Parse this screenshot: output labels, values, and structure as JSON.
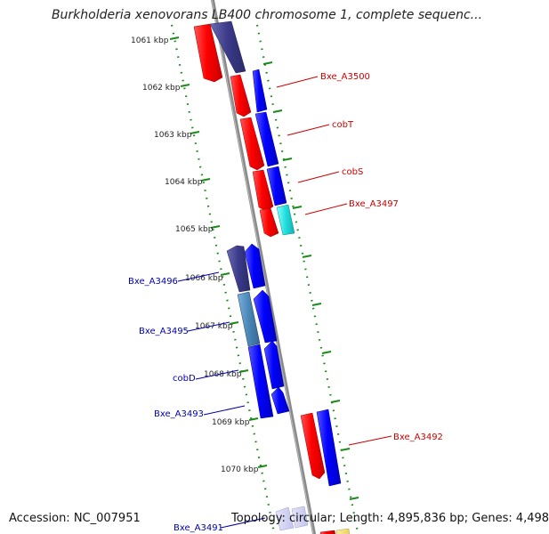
{
  "title": "Burkholderia xenovorans LB400 chromosome 1, complete sequenc...",
  "footer": {
    "accession": "Accession: NC_007951",
    "topology": "Topology: circular; Length: 4,895,836 bp; Genes: 4,498"
  },
  "colors": {
    "red": "#ff0000",
    "blue": "#0000ff",
    "navy": "#3a3a8a",
    "cyan": "#22dddd",
    "steel": "#4a86b8",
    "backbone": "#8a8a8a",
    "scale": "#1a8a1a",
    "label_red": "#cc0000",
    "label_blue": "#0000aa"
  },
  "ticks": [
    {
      "label": "1061 kbp"
    },
    {
      "label": "1062 kbp"
    },
    {
      "label": "1063 kbp"
    },
    {
      "label": "1064 kbp"
    },
    {
      "label": "1065 kbp"
    },
    {
      "label": "1066 kbp"
    },
    {
      "label": "1067 kbp"
    },
    {
      "label": "1068 kbp"
    },
    {
      "label": "1069 kbp"
    },
    {
      "label": "1070 kbp"
    }
  ],
  "gene_labels": [
    {
      "id": "lbl-bxe-a3500",
      "text": "Bxe_A3500",
      "color": "red"
    },
    {
      "id": "lbl-cobt",
      "text": "cobT",
      "color": "red"
    },
    {
      "id": "lbl-cobs",
      "text": "cobS",
      "color": "red"
    },
    {
      "id": "lbl-bxe-a3497",
      "text": "Bxe_A3497",
      "color": "red"
    },
    {
      "id": "lbl-bxe-a3496",
      "text": "Bxe_A3496",
      "color": "blue"
    },
    {
      "id": "lbl-bxe-a3495",
      "text": "Bxe_A3495",
      "color": "blue"
    },
    {
      "id": "lbl-cobd",
      "text": "cobD",
      "color": "blue"
    },
    {
      "id": "lbl-bxe-a3493",
      "text": "Bxe_A3493",
      "color": "blue"
    },
    {
      "id": "lbl-bxe-a3492",
      "text": "Bxe_A3492",
      "color": "red"
    },
    {
      "id": "lbl-bxe-a3491",
      "text": "Bxe_A3491",
      "color": "blue"
    }
  ]
}
